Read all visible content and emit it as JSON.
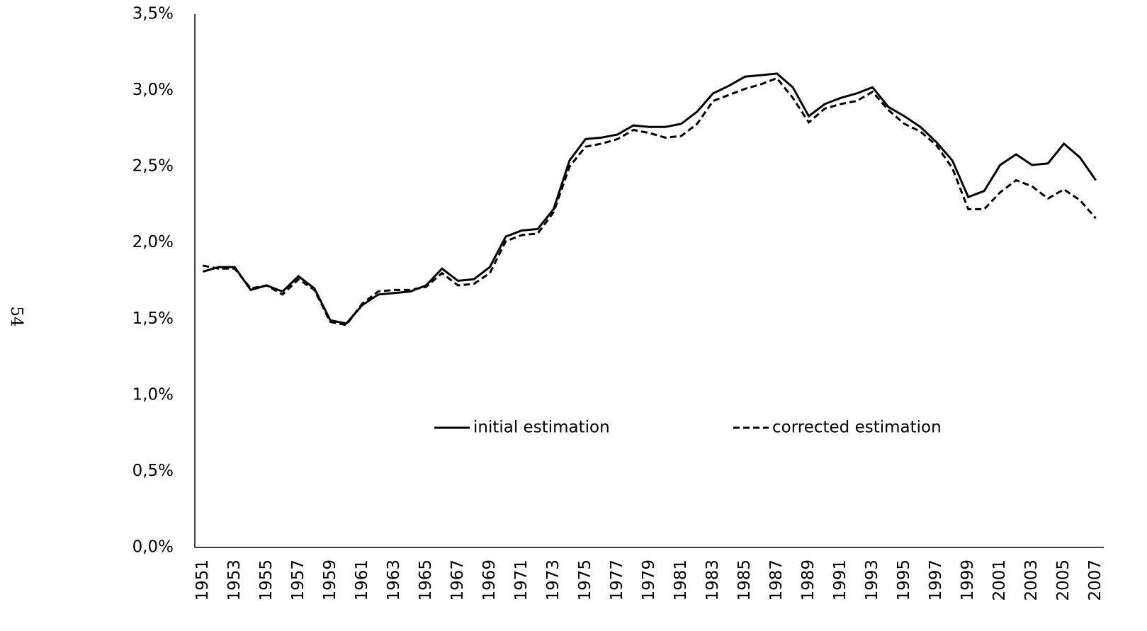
{
  "page_number": "54",
  "chart_data": {
    "type": "line",
    "categories": [
      "1951",
      null,
      "1953",
      null,
      "1955",
      null,
      "1957",
      null,
      "1959",
      null,
      "1961",
      null,
      "1963",
      null,
      "1965",
      null,
      "1967",
      null,
      "1969",
      null,
      "1971",
      null,
      "1973",
      null,
      "1975",
      null,
      "1977",
      null,
      "1979",
      null,
      "1981",
      null,
      "1983",
      null,
      "1985",
      null,
      "1987",
      null,
      "1989",
      null,
      "1991",
      null,
      "1993",
      null,
      "1995",
      null,
      "1997",
      null,
      "1999",
      null,
      "2001",
      null,
      "2003",
      null,
      "2005",
      null,
      "2007"
    ],
    "series": [
      {
        "name": "initial estimation",
        "color": "#000000",
        "line_style": "solid",
        "values": [
          1.81,
          1.84,
          1.84,
          1.69,
          1.72,
          1.68,
          1.78,
          1.7,
          1.49,
          1.47,
          1.59,
          1.66,
          1.67,
          1.68,
          1.72,
          1.83,
          1.75,
          1.76,
          1.84,
          2.04,
          2.08,
          2.09,
          2.22,
          2.54,
          2.68,
          2.69,
          2.71,
          2.77,
          2.76,
          2.76,
          2.78,
          2.86,
          2.98,
          3.03,
          3.09,
          3.1,
          3.11,
          3.02,
          2.83,
          2.91,
          2.95,
          2.98,
          3.02,
          2.89,
          2.83,
          2.76,
          2.66,
          2.54,
          2.3,
          2.34,
          2.51,
          2.58,
          2.51,
          2.52,
          2.65,
          2.56,
          2.41
        ]
      },
      {
        "name": "corrected estimation",
        "color": "#000000",
        "line_style": "dashed",
        "values": [
          1.85,
          1.83,
          1.83,
          1.7,
          1.72,
          1.66,
          1.76,
          1.69,
          1.48,
          1.46,
          1.6,
          1.68,
          1.69,
          1.69,
          1.71,
          1.8,
          1.72,
          1.73,
          1.8,
          2.01,
          2.05,
          2.06,
          2.2,
          2.5,
          2.63,
          2.65,
          2.68,
          2.74,
          2.72,
          2.69,
          2.7,
          2.78,
          2.93,
          2.97,
          3.01,
          3.04,
          3.08,
          2.95,
          2.79,
          2.88,
          2.91,
          2.93,
          2.99,
          2.87,
          2.78,
          2.73,
          2.64,
          2.49,
          2.22,
          2.22,
          2.33,
          2.41,
          2.37,
          2.29,
          2.35,
          2.28,
          2.16
        ]
      }
    ],
    "ylim": [
      0,
      3.5
    ],
    "yticks": [
      {
        "value": 0,
        "label": "0,0%"
      },
      {
        "value": 0.5,
        "label": "0,5%"
      },
      {
        "value": 1,
        "label": "1,0%"
      },
      {
        "value": 1.5,
        "label": "1,5%"
      },
      {
        "value": 2,
        "label": "2,0%"
      },
      {
        "value": 2.5,
        "label": "2,5%"
      },
      {
        "value": 3,
        "label": "3,0%"
      },
      {
        "value": 3.5,
        "label": "3,5%"
      }
    ],
    "grid": false,
    "legend": "center"
  }
}
